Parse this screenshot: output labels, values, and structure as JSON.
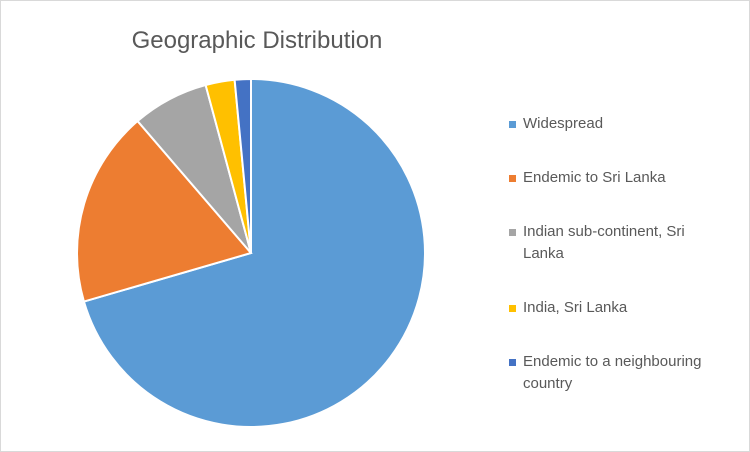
{
  "chart_data": {
    "type": "pie",
    "title": "Geographic Distribution",
    "categories": [
      "Widespread",
      "Endemic to Sri Lanka",
      "Indian sub-continent, Sri Lanka",
      "India, Sri Lanka",
      "Endemic to a neighbouring country"
    ],
    "values": [
      70.5,
      18.2,
      7.1,
      2.7,
      1.5
    ],
    "colors": [
      "#5b9bd5",
      "#ed7d31",
      "#a5a5a5",
      "#ffc000",
      "#4472c4"
    ],
    "legend": "right"
  }
}
